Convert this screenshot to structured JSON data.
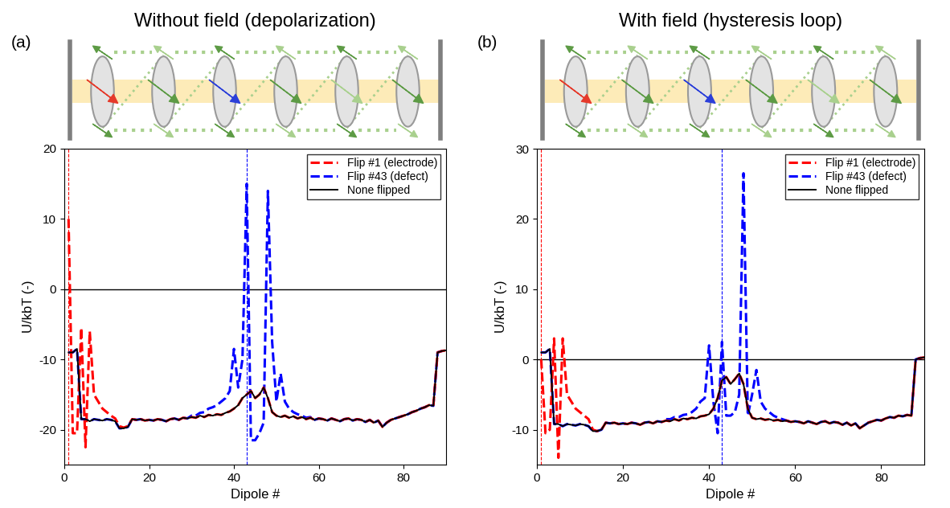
{
  "chart_data": [
    {
      "type": "line",
      "label": "(a)",
      "title": "Without field (depolarization)",
      "x_label": "Dipole #",
      "y_label": "U/kbT (-)",
      "xlim": [
        0,
        90
      ],
      "xticks": [
        0,
        20,
        40,
        60,
        80
      ],
      "ylim": [
        -25,
        20
      ],
      "yticks": [
        -20,
        -10,
        0,
        10,
        20
      ],
      "legend": "upper right",
      "vlines": [
        {
          "x": 1,
          "color": "#ff0000"
        },
        {
          "x": 43,
          "color": "#0000ff"
        }
      ],
      "hlines": [
        {
          "y": 0,
          "color": "#000000"
        }
      ],
      "x": [
        1,
        2,
        3,
        4,
        5,
        6,
        7,
        8,
        9,
        10,
        11,
        12,
        13,
        14,
        15,
        16,
        17,
        18,
        19,
        20,
        21,
        22,
        23,
        24,
        25,
        26,
        27,
        28,
        29,
        30,
        31,
        32,
        33,
        34,
        35,
        36,
        37,
        38,
        39,
        40,
        41,
        42,
        43,
        44,
        45,
        46,
        47,
        48,
        49,
        50,
        51,
        52,
        53,
        54,
        55,
        56,
        57,
        58,
        59,
        60,
        61,
        62,
        63,
        64,
        65,
        66,
        67,
        68,
        69,
        70,
        71,
        72,
        73,
        74,
        75,
        76,
        77,
        78,
        79,
        80,
        81,
        82,
        83,
        84,
        85,
        86,
        87,
        88,
        89,
        90
      ],
      "series": [
        {
          "name": "Flip #1 (electrode)",
          "color": "#ff0000",
          "line_style": "dashed",
          "values": [
            10,
            -20.5,
            -20.5,
            -5.5,
            -22.5,
            -6,
            -15,
            -16,
            -17,
            -17.5,
            -18,
            -18.4,
            -19.5,
            -19.7,
            -19.5,
            -18.5,
            -18.6,
            -18.5,
            -18.7,
            -18.6,
            -18.7,
            -18.5,
            -18.6,
            -18.8,
            -18.5,
            -18.4,
            -18.6,
            -18.3,
            -18.4,
            -18.2,
            -18.3,
            -18.0,
            -18.2,
            -17.9,
            -18.0,
            -17.8,
            -17.9,
            -17.6,
            -17.4,
            -17.0,
            -16.5,
            -15.5,
            -15.0,
            -14.5,
            -15.5,
            -15.0,
            -14.0,
            -15.5,
            -17.5,
            -18.0,
            -18.2,
            -18.0,
            -18.3,
            -18.1,
            -18.4,
            -18.2,
            -18.5,
            -18.3,
            -18.6,
            -18.4,
            -18.5,
            -18.7,
            -18.4,
            -18.6,
            -18.8,
            -18.5,
            -18.4,
            -18.7,
            -18.5,
            -18.6,
            -18.9,
            -18.6,
            -19.0,
            -18.7,
            -19.6,
            -19.0,
            -18.6,
            -18.4,
            -18.2,
            -18.0,
            -17.8,
            -17.5,
            -17.3,
            -17.0,
            -16.8,
            -16.5,
            -16.6,
            -9.0,
            -8.8,
            -8.7
          ]
        },
        {
          "name": "Flip #43 (defect)",
          "color": "#0000ff",
          "line_style": "dashed",
          "values": [
            -9,
            -9,
            -8.5,
            -18.5,
            -18.5,
            -18.8,
            -18.5,
            -18.6,
            -18.7,
            -18.5,
            -18.6,
            -18.8,
            -19.8,
            -19.8,
            -19.6,
            -18.5,
            -18.6,
            -18.5,
            -18.7,
            -18.6,
            -18.7,
            -18.5,
            -18.6,
            -18.8,
            -18.5,
            -18.4,
            -18.6,
            -18.3,
            -18.4,
            -18.0,
            -18.0,
            -17.6,
            -17.5,
            -17.0,
            -16.8,
            -16.5,
            -16.0,
            -15.5,
            -14.5,
            -8.5,
            -14.0,
            -10.0,
            15.0,
            -21.5,
            -21.5,
            -20.5,
            -19.0,
            14.0,
            -7.5,
            -16.0,
            -12.0,
            -16.0,
            -17.0,
            -17.5,
            -17.8,
            -18.0,
            -18.3,
            -18.2,
            -18.6,
            -18.4,
            -18.5,
            -18.7,
            -18.4,
            -18.6,
            -18.8,
            -18.5,
            -18.4,
            -18.7,
            -18.5,
            -18.6,
            -18.9,
            -18.6,
            -19.0,
            -18.7,
            -19.6,
            -19.0,
            -18.6,
            -18.4,
            -18.2,
            -18.0,
            -17.8,
            -17.5,
            -17.3,
            -17.0,
            -16.8,
            -16.5,
            -16.6,
            -9.0,
            -8.8,
            -8.7
          ]
        },
        {
          "name": "None flipped",
          "color": "#000000",
          "line_style": "solid",
          "values": [
            -9,
            -9,
            -8.5,
            -18.5,
            -18.5,
            -18.8,
            -18.5,
            -18.6,
            -18.7,
            -18.5,
            -18.6,
            -18.8,
            -19.8,
            -19.8,
            -19.6,
            -18.5,
            -18.6,
            -18.5,
            -18.7,
            -18.6,
            -18.7,
            -18.5,
            -18.6,
            -18.8,
            -18.5,
            -18.4,
            -18.6,
            -18.3,
            -18.4,
            -18.2,
            -18.3,
            -18.0,
            -18.2,
            -17.9,
            -18.0,
            -17.8,
            -17.9,
            -17.6,
            -17.4,
            -17.0,
            -16.5,
            -15.5,
            -15.0,
            -14.5,
            -15.5,
            -15.0,
            -14.0,
            -15.5,
            -17.5,
            -18.0,
            -18.2,
            -18.0,
            -18.3,
            -18.1,
            -18.4,
            -18.2,
            -18.5,
            -18.3,
            -18.6,
            -18.4,
            -18.5,
            -18.7,
            -18.4,
            -18.6,
            -18.8,
            -18.5,
            -18.4,
            -18.7,
            -18.5,
            -18.6,
            -18.9,
            -18.6,
            -19.0,
            -18.7,
            -19.6,
            -19.0,
            -18.6,
            -18.4,
            -18.2,
            -18.0,
            -17.8,
            -17.5,
            -17.3,
            -17.0,
            -16.8,
            -16.5,
            -16.6,
            -9.0,
            -8.8,
            -8.7
          ]
        }
      ]
    },
    {
      "type": "line",
      "label": "(b)",
      "title": "With field (hysteresis loop)",
      "x_label": "Dipole #",
      "y_label": "U/kbT (-)",
      "xlim": [
        0,
        90
      ],
      "xticks": [
        0,
        20,
        40,
        60,
        80
      ],
      "ylim": [
        -15,
        30
      ],
      "yticks": [
        -10,
        0,
        10,
        20,
        30
      ],
      "legend": "upper right",
      "vlines": [
        {
          "x": 1,
          "color": "#ff0000"
        },
        {
          "x": 43,
          "color": "#0000ff"
        }
      ],
      "hlines": [
        {
          "y": 0,
          "color": "#000000"
        }
      ],
      "x": [
        1,
        2,
        3,
        4,
        5,
        6,
        7,
        8,
        9,
        10,
        11,
        12,
        13,
        14,
        15,
        16,
        17,
        18,
        19,
        20,
        21,
        22,
        23,
        24,
        25,
        26,
        27,
        28,
        29,
        30,
        31,
        32,
        33,
        34,
        35,
        36,
        37,
        38,
        39,
        40,
        41,
        42,
        43,
        44,
        45,
        46,
        47,
        48,
        49,
        50,
        51,
        52,
        53,
        54,
        55,
        56,
        57,
        58,
        59,
        60,
        61,
        62,
        63,
        64,
        65,
        66,
        67,
        68,
        69,
        70,
        71,
        72,
        73,
        74,
        75,
        76,
        77,
        78,
        79,
        80,
        81,
        82,
        83,
        84,
        85,
        86,
        87,
        88,
        89,
        90
      ],
      "series": [
        {
          "name": "Flip #1 (electrode)",
          "color": "#ff0000",
          "line_style": "dashed",
          "values": [
            0,
            -10.5,
            -10,
            3,
            -14,
            3,
            -5,
            -6,
            -7,
            -7.5,
            -8,
            -8.5,
            -10,
            -10.2,
            -10.0,
            -9.0,
            -9.1,
            -9.0,
            -9.2,
            -9.1,
            -9.2,
            -9.0,
            -9.1,
            -9.3,
            -9.0,
            -8.9,
            -9.1,
            -8.8,
            -8.9,
            -8.7,
            -8.8,
            -8.5,
            -8.7,
            -8.4,
            -8.5,
            -8.3,
            -8.4,
            -8.1,
            -8.0,
            -7.8,
            -7.0,
            -5.5,
            -3.0,
            -2.5,
            -3.5,
            -2.8,
            -2.0,
            -3.5,
            -7.0,
            -8.3,
            -8.5,
            -8.4,
            -8.6,
            -8.5,
            -8.7,
            -8.6,
            -8.8,
            -8.7,
            -8.9,
            -8.8,
            -8.9,
            -9.1,
            -8.8,
            -9.0,
            -9.2,
            -8.9,
            -8.8,
            -9.1,
            -8.9,
            -9.0,
            -9.3,
            -9.0,
            -9.4,
            -9.1,
            -9.8,
            -9.4,
            -9.0,
            -8.8,
            -8.6,
            -8.7,
            -8.4,
            -8.2,
            -8.3,
            -8.0,
            -8.1,
            -7.9,
            -8.0,
            0.0,
            0.2,
            0.3
          ]
        },
        {
          "name": "Flip #43 (defect)",
          "color": "#0000ff",
          "line_style": "dashed",
          "values": [
            1.0,
            1.0,
            1.5,
            -9.2,
            -9.2,
            -9.5,
            -9.2,
            -9.3,
            -9.4,
            -9.2,
            -9.3,
            -9.5,
            -10.2,
            -10.2,
            -10.0,
            -9.0,
            -9.1,
            -9.0,
            -9.2,
            -9.1,
            -9.2,
            -9.0,
            -9.1,
            -9.3,
            -9.0,
            -8.9,
            -9.1,
            -8.8,
            -8.9,
            -8.5,
            -8.5,
            -8.2,
            -8.2,
            -7.9,
            -7.8,
            -7.5,
            -7.0,
            -6.0,
            -5.5,
            2.0,
            -6.0,
            -10.5,
            2.5,
            -8.0,
            -8.0,
            -7.5,
            -5.0,
            26.5,
            -8.0,
            -5.0,
            -1.5,
            -6.0,
            -7.0,
            -7.5,
            -8.0,
            -8.3,
            -8.5,
            -8.7,
            -8.9,
            -8.8,
            -8.9,
            -9.1,
            -8.8,
            -9.0,
            -9.2,
            -8.9,
            -8.8,
            -9.1,
            -8.9,
            -9.0,
            -9.3,
            -9.0,
            -9.4,
            -9.1,
            -9.8,
            -9.4,
            -9.0,
            -8.8,
            -8.6,
            -8.7,
            -8.4,
            -8.2,
            -8.3,
            -8.0,
            -8.1,
            -7.9,
            -8.0,
            0.0,
            0.2,
            0.3
          ]
        },
        {
          "name": "None flipped",
          "color": "#000000",
          "line_style": "solid",
          "values": [
            1.0,
            1.0,
            1.5,
            -9.2,
            -9.2,
            -9.5,
            -9.2,
            -9.3,
            -9.4,
            -9.2,
            -9.3,
            -9.5,
            -10.2,
            -10.2,
            -10.0,
            -9.0,
            -9.1,
            -9.0,
            -9.2,
            -9.1,
            -9.2,
            -9.0,
            -9.1,
            -9.3,
            -9.0,
            -8.9,
            -9.1,
            -8.8,
            -8.9,
            -8.7,
            -8.8,
            -8.5,
            -8.7,
            -8.4,
            -8.5,
            -8.3,
            -8.4,
            -8.1,
            -8.0,
            -7.8,
            -7.0,
            -5.5,
            -3.0,
            -2.5,
            -3.5,
            -2.8,
            -2.0,
            -3.5,
            -7.0,
            -8.3,
            -8.5,
            -8.4,
            -8.6,
            -8.5,
            -8.7,
            -8.6,
            -8.8,
            -8.7,
            -8.9,
            -8.8,
            -8.9,
            -9.1,
            -8.8,
            -9.0,
            -9.2,
            -8.9,
            -8.8,
            -9.1,
            -8.9,
            -9.0,
            -9.3,
            -9.0,
            -9.4,
            -9.1,
            -9.8,
            -9.4,
            -9.0,
            -8.8,
            -8.6,
            -8.7,
            -8.4,
            -8.2,
            -8.3,
            -8.0,
            -8.1,
            -7.9,
            -8.0,
            0.0,
            0.2,
            0.3
          ]
        }
      ]
    }
  ]
}
